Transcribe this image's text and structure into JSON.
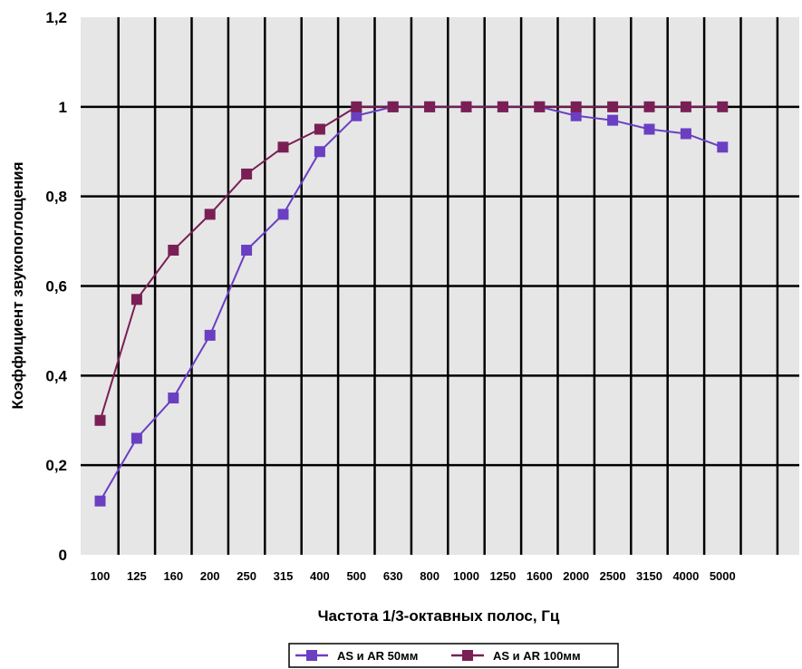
{
  "chart_data": {
    "type": "line",
    "xlabel": "Частота 1/3-октавных полос, Гц",
    "ylabel": "Коэффициент звукопоглощения",
    "categories": [
      "100",
      "125",
      "160",
      "200",
      "250",
      "315",
      "400",
      "500",
      "630",
      "800",
      "1000",
      "1250",
      "1600",
      "2000",
      "2500",
      "3150",
      "4000",
      "5000"
    ],
    "y_tick_labels": [
      "0",
      "0,2",
      "0,4",
      "0,6",
      "0,8",
      "1",
      "1,2"
    ],
    "ylim": [
      0,
      1.2
    ],
    "grid": true,
    "legend_position": "bottom",
    "plot_background": "#e6e6e6",
    "series": [
      {
        "name": "AS и AR 50мм",
        "color": "#6a3fc2",
        "values": [
          0.12,
          0.26,
          0.35,
          0.49,
          0.68,
          0.76,
          0.9,
          0.98,
          1.0,
          1.0,
          1.0,
          1.0,
          1.0,
          0.98,
          0.97,
          0.95,
          0.94,
          0.91
        ]
      },
      {
        "name": "AS и AR 100мм",
        "color": "#7a1f55",
        "values": [
          0.3,
          0.57,
          0.68,
          0.76,
          0.85,
          0.91,
          0.95,
          1.0,
          1.0,
          1.0,
          1.0,
          1.0,
          1.0,
          1.0,
          1.0,
          1.0,
          1.0,
          1.0
        ]
      }
    ]
  }
}
